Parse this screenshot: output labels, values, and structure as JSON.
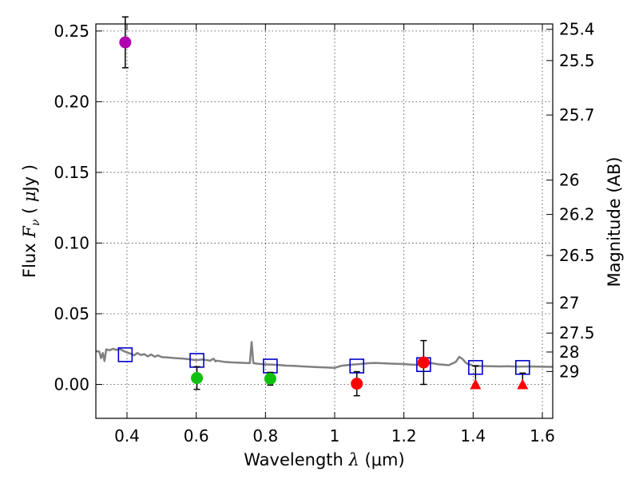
{
  "chart_data": {
    "type": "scatter",
    "title": "",
    "xlabel": "Wavelength  λ (μm)",
    "xlabel_parts": {
      "text": "Wavelength  ",
      "symbol": "λ",
      "unit": " (μm)"
    },
    "ylabel": "Flux  Fν  ( μJy )",
    "ylabel_parts": {
      "text": "Flux  ",
      "symbol": "F",
      "sub": "ν",
      "unit_open": "  ( ",
      "mu": "μ",
      "unit_rest": "Jy )"
    },
    "y2label": "Magnitude (AB)",
    "xlim": [
      0.31,
      1.63
    ],
    "ylim": [
      -0.024,
      0.255
    ],
    "x_ticks": [
      0.4,
      0.6,
      0.8,
      1.0,
      1.2,
      1.4,
      1.6
    ],
    "x_tick_labels": [
      "0.4",
      "0.6",
      "0.8",
      "1",
      "1.2",
      "1.4",
      "1.6"
    ],
    "y_ticks": [
      0.0,
      0.05,
      0.1,
      0.15,
      0.2,
      0.25
    ],
    "y_tick_labels": [
      "0.00",
      "0.05",
      "0.10",
      "0.15",
      "0.20",
      "0.25"
    ],
    "mag_ticks": [
      25.4,
      25.5,
      25.7,
      26,
      26.2,
      26.5,
      27,
      27.5,
      28,
      29
    ],
    "mag_tick_labels": [
      "25.4",
      "25.5",
      "25.7",
      "26",
      "26.2",
      "26.5",
      "27",
      "27.5",
      "28",
      "29"
    ],
    "grid": true,
    "series": [
      {
        "name": "template-spectrum",
        "kind": "line",
        "color": "#808080",
        "x": [
          0.31,
          0.32,
          0.325,
          0.33,
          0.335,
          0.34,
          0.35,
          0.36,
          0.37,
          0.38,
          0.39,
          0.4,
          0.41,
          0.42,
          0.43,
          0.44,
          0.45,
          0.46,
          0.47,
          0.48,
          0.49,
          0.5,
          0.52,
          0.54,
          0.56,
          0.58,
          0.6,
          0.62,
          0.64,
          0.65,
          0.656,
          0.66,
          0.68,
          0.7,
          0.72,
          0.74,
          0.755,
          0.76,
          0.765,
          0.78,
          0.8,
          0.82,
          0.84,
          0.86,
          0.88,
          0.9,
          0.92,
          0.95,
          0.98,
          1.0,
          1.02,
          1.05,
          1.08,
          1.1,
          1.12,
          1.15,
          1.18,
          1.2,
          1.22,
          1.25,
          1.28,
          1.3,
          1.33,
          1.35,
          1.36,
          1.37,
          1.38,
          1.4,
          1.42,
          1.45,
          1.48,
          1.5,
          1.53,
          1.56,
          1.6,
          1.63
        ],
        "y": [
          0.0235,
          0.0232,
          0.0185,
          0.0222,
          0.0165,
          0.0248,
          0.0242,
          0.0252,
          0.0244,
          0.025,
          0.0236,
          0.0226,
          0.0218,
          0.0205,
          0.0222,
          0.0208,
          0.0214,
          0.0198,
          0.0212,
          0.0196,
          0.0205,
          0.0194,
          0.019,
          0.0186,
          0.0183,
          0.0178,
          0.0172,
          0.0176,
          0.0168,
          0.0182,
          0.0162,
          0.0168,
          0.016,
          0.0156,
          0.0154,
          0.0152,
          0.015,
          0.03,
          0.015,
          0.0146,
          0.0142,
          0.014,
          0.0137,
          0.0133,
          0.0131,
          0.0129,
          0.0126,
          0.0122,
          0.0119,
          0.0117,
          0.0132,
          0.014,
          0.0146,
          0.015,
          0.0152,
          0.0148,
          0.0145,
          0.0144,
          0.014,
          0.0138,
          0.015,
          0.0142,
          0.0136,
          0.016,
          0.0195,
          0.0178,
          0.015,
          0.0132,
          0.013,
          0.0128,
          0.0127,
          0.0128,
          0.0126,
          0.0127,
          0.0125,
          0.0124
        ]
      },
      {
        "name": "model-photometry",
        "kind": "open-square",
        "color": "#0000cc",
        "x": [
          0.395,
          0.602,
          0.814,
          1.064,
          1.257,
          1.407,
          1.543
        ],
        "y": [
          0.021,
          0.017,
          0.013,
          0.013,
          0.014,
          0.012,
          0.012
        ]
      },
      {
        "name": "violet-band",
        "kind": "circle",
        "color": "#b000b0",
        "x": [
          0.395
        ],
        "y": [
          0.242
        ],
        "err": [
          0.018
        ]
      },
      {
        "name": "green-bands",
        "kind": "circle",
        "color": "#10c010",
        "x": [
          0.602,
          0.814
        ],
        "y": [
          0.0045,
          0.004
        ],
        "err": [
          0.008,
          0.0045
        ]
      },
      {
        "name": "red-bands",
        "kind": "circle",
        "color": "#ff0000",
        "x": [
          1.064,
          1.257
        ],
        "y": [
          0.0005,
          0.0155
        ],
        "err": [
          0.0085,
          0.0155
        ]
      },
      {
        "name": "red-upper-limits",
        "kind": "triangle",
        "color": "#ff0000",
        "x": [
          1.407,
          1.543
        ],
        "y": [
          0.0,
          0.0
        ],
        "err_low": [
          0.0,
          0.0
        ],
        "err_high": [
          0.013,
          0.008
        ]
      }
    ]
  }
}
